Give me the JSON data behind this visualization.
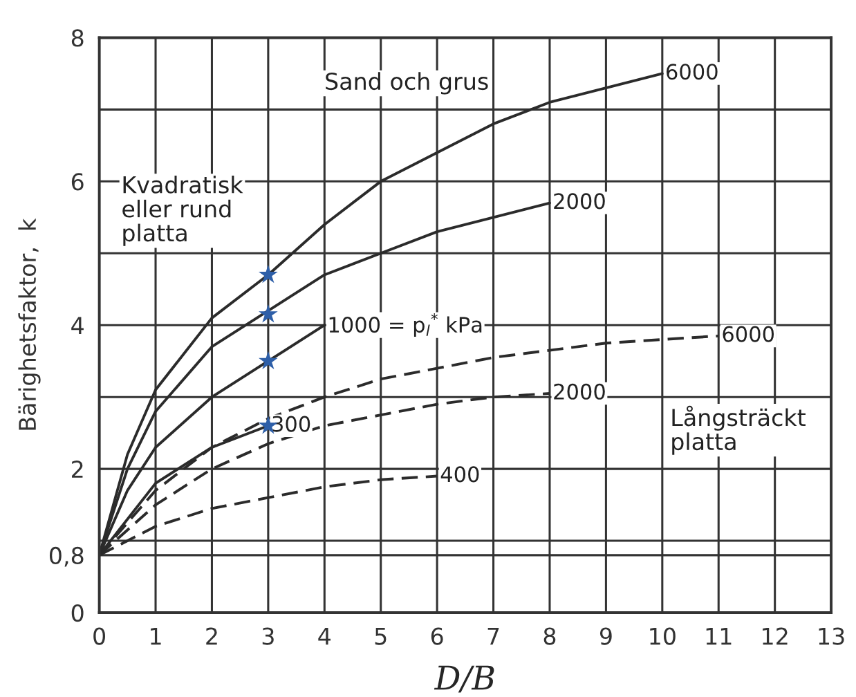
{
  "chart_data": {
    "type": "line",
    "xlabel": "D/B",
    "ylabel": "Bärighetsfaktor,  k",
    "xlim": [
      0,
      13
    ],
    "ylim": [
      0,
      8
    ],
    "xticks": [
      0,
      1,
      2,
      3,
      4,
      5,
      6,
      7,
      8,
      9,
      10,
      11,
      12,
      13
    ],
    "yticks": [
      0,
      {
        "value": 0.8,
        "label": "0,8"
      },
      {
        "value": 1,
        "label": null
      },
      2,
      {
        "value": 3,
        "label": null
      },
      4,
      {
        "value": 5,
        "label": null
      },
      6,
      {
        "value": 7,
        "label": null
      },
      8
    ],
    "grid": true,
    "legend": false,
    "marker": "none",
    "series": [
      {
        "name": "6000",
        "color": "#2b2b2b",
        "line_style": "solid",
        "x": [
          0,
          0.5,
          1,
          2,
          3,
          4,
          5,
          6,
          7,
          8,
          9,
          10
        ],
        "values": [
          0.8,
          2.2,
          3.1,
          4.1,
          4.7,
          5.4,
          6.0,
          6.4,
          6.8,
          7.1,
          7.3,
          7.5
        ]
      },
      {
        "name": "2000",
        "color": "#2b2b2b",
        "line_style": "solid",
        "x": [
          0,
          0.5,
          1,
          2,
          3,
          4,
          5,
          6,
          7,
          8
        ],
        "values": [
          0.8,
          2.0,
          2.8,
          3.7,
          4.2,
          4.7,
          5.0,
          5.3,
          5.5,
          5.7
        ]
      },
      {
        "name": "1000 = p$_{l}$$^{*}$ kPa",
        "color": "#2b2b2b",
        "line_style": "solid",
        "x": [
          0,
          0.5,
          1,
          2,
          3,
          4
        ],
        "values": [
          0.8,
          1.7,
          2.3,
          3.0,
          3.5,
          4.0
        ]
      },
      {
        "name": "300",
        "color": "#2b2b2b",
        "line_style": "solid",
        "x": [
          0,
          1,
          2,
          3
        ],
        "values": [
          0.8,
          1.8,
          2.3,
          2.6
        ]
      },
      {
        "name": "6000",
        "color": "#2b2b2b",
        "line_style": "dashed",
        "x": [
          0,
          1,
          2,
          3,
          4,
          5,
          6,
          7,
          8,
          9,
          10,
          11
        ],
        "values": [
          0.8,
          1.7,
          2.3,
          2.7,
          3.0,
          3.25,
          3.4,
          3.55,
          3.65,
          3.75,
          3.8,
          3.85
        ]
      },
      {
        "name": "2000",
        "color": "#2b2b2b",
        "line_style": "dashed",
        "x": [
          0,
          1,
          2,
          3,
          4,
          5,
          6,
          7,
          8
        ],
        "values": [
          0.8,
          1.5,
          2.0,
          2.35,
          2.6,
          2.75,
          2.9,
          3.0,
          3.05
        ]
      },
      {
        "name": "400",
        "color": "#2b2b2b",
        "line_style": "dashed",
        "x": [
          0,
          1,
          2,
          3,
          4,
          5,
          6
        ],
        "values": [
          0.8,
          1.2,
          1.45,
          1.6,
          1.75,
          1.85,
          1.9
        ]
      },
      {
        "type": "scatter",
        "marker": "star",
        "color": "#2e5fa8",
        "x": [
          3,
          3,
          3,
          3
        ],
        "values": [
          4.7,
          4.15,
          3.5,
          2.6
        ]
      }
    ],
    "annotations": [
      "Sand och grus",
      "Kvadratisk\neller rund\nplatta",
      "Långsträckt\nplatta"
    ]
  }
}
